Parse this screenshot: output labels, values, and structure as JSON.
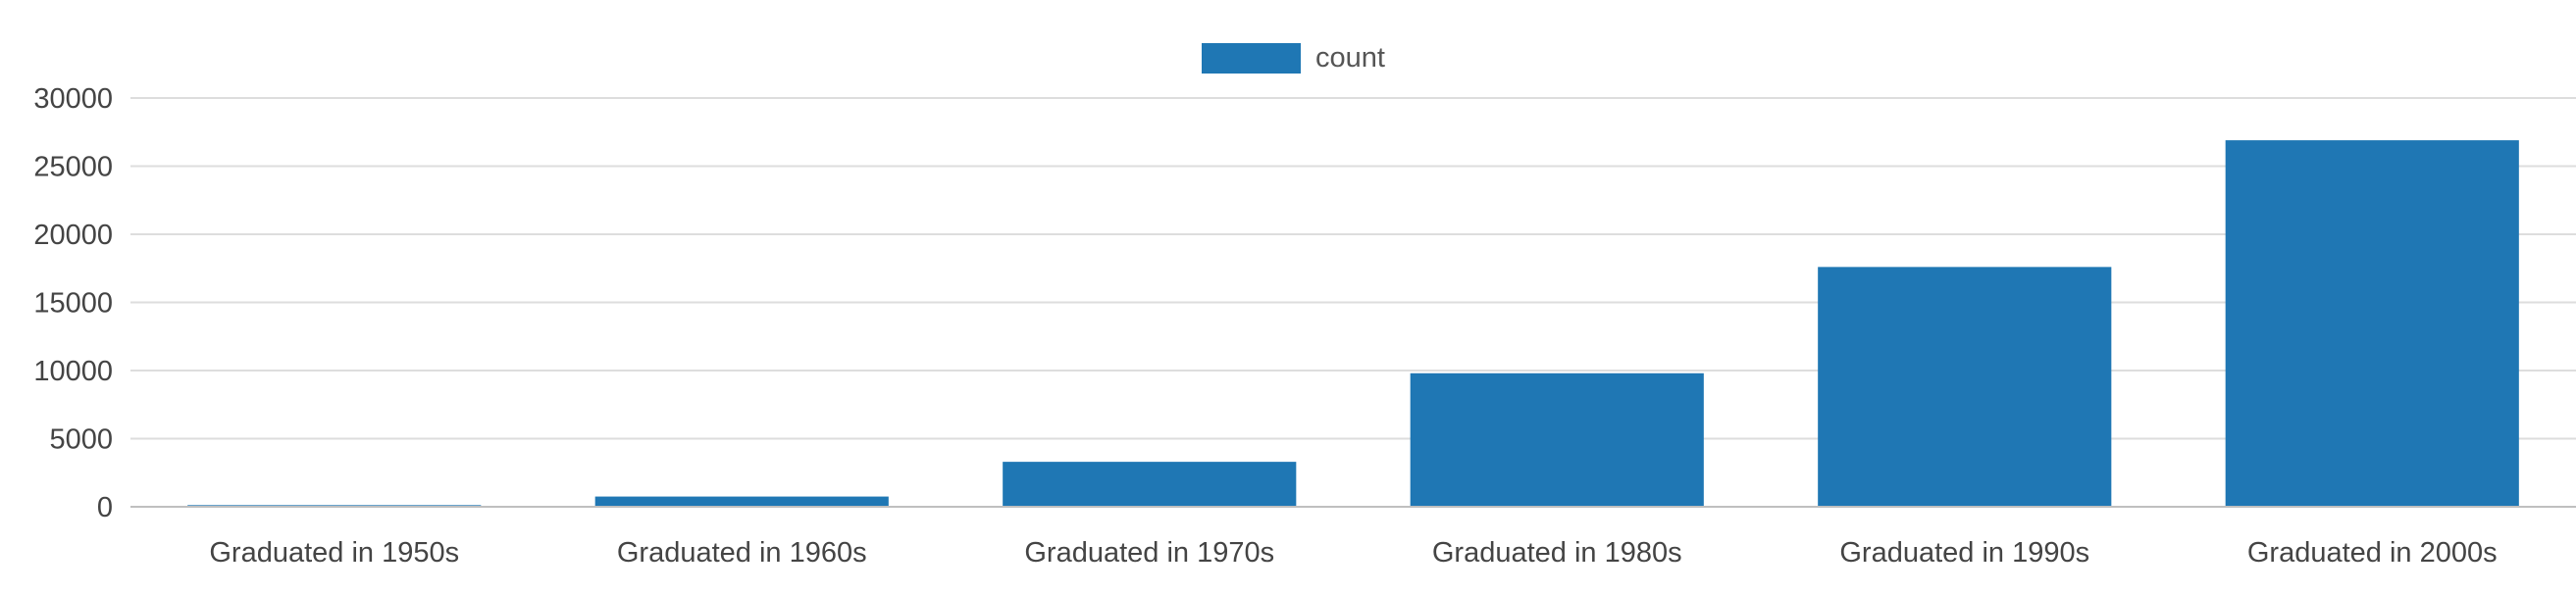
{
  "chart_data": {
    "type": "bar",
    "categories": [
      "Graduated in 1950s",
      "Graduated in 1960s",
      "Graduated in 1970s",
      "Graduated in 1980s",
      "Graduated in 1990s",
      "Graduated in 2000s"
    ],
    "series": [
      {
        "name": "count",
        "color": "#1f77b4",
        "values": [
          120,
          750,
          3300,
          9800,
          17600,
          26900
        ]
      }
    ],
    "ylim": [
      0,
      30000
    ],
    "yticks": [
      0,
      5000,
      10000,
      15000,
      20000,
      25000,
      30000
    ],
    "grid": true,
    "legend_position": "top-center",
    "title": "",
    "xlabel": "",
    "ylabel": ""
  }
}
